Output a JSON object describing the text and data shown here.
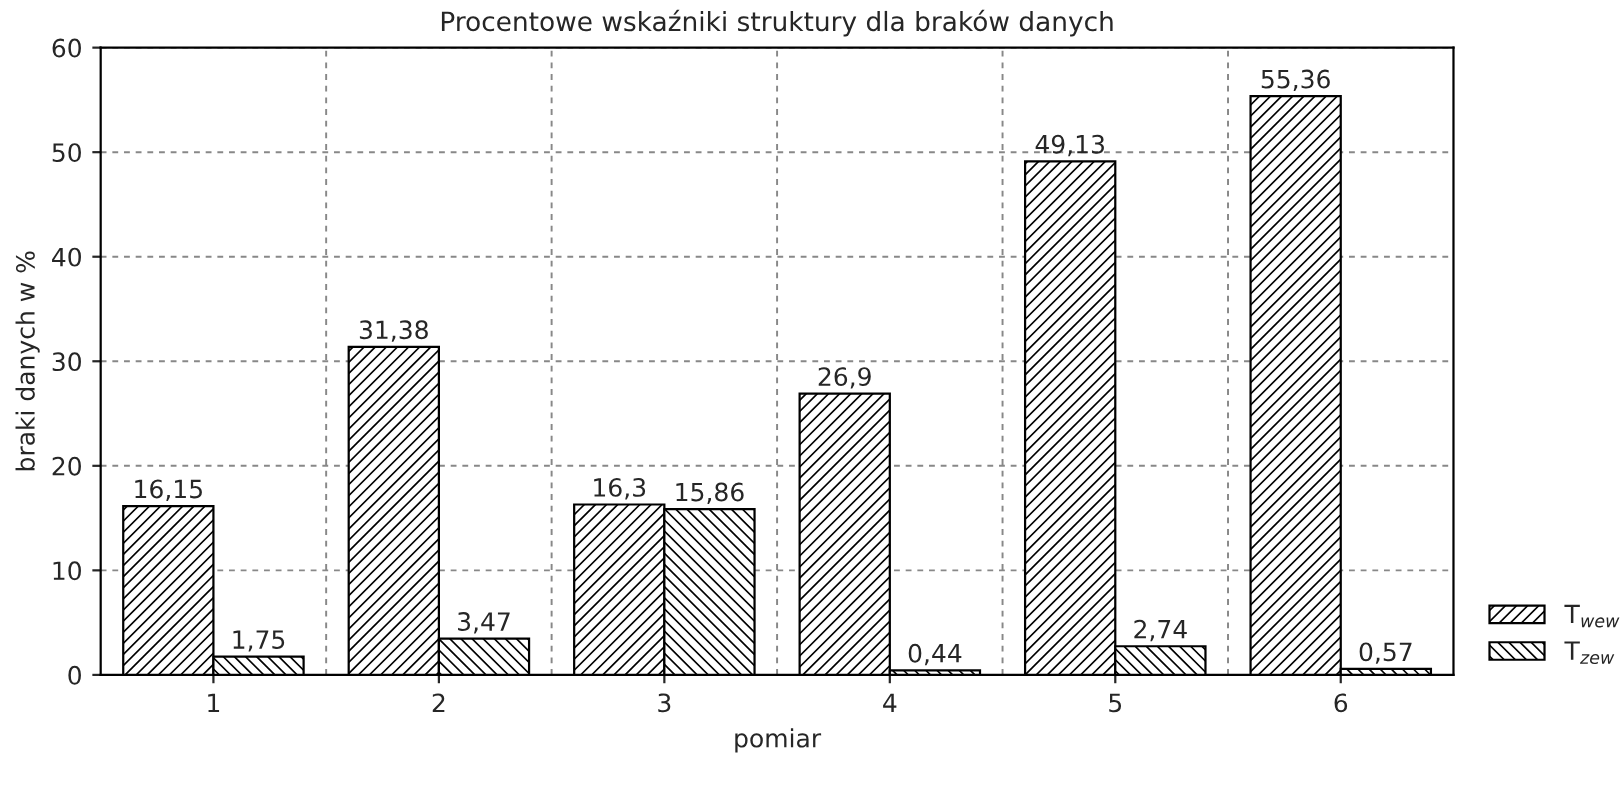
{
  "chart_data": {
    "type": "bar",
    "title": "Procentowe wskaźniki struktury dla braków danych",
    "xlabel": "pomiar",
    "ylabel": "braki danych w %",
    "categories": [
      "1",
      "2",
      "3",
      "4",
      "5",
      "6"
    ],
    "series": [
      {
        "name": "T$_{wew}$",
        "color": "#000000",
        "values": [
          16.15,
          31.38,
          16.3,
          26.9,
          49.13,
          55.36
        ],
        "value_labels": [
          "16,15",
          "31,38",
          "16,3",
          "26,9",
          "49,13",
          "55,36"
        ]
      },
      {
        "name": "T$_{zew}$",
        "color": "#000000",
        "values": [
          1.75,
          3.47,
          15.86,
          0.44,
          2.74,
          0.57
        ],
        "value_labels": [
          "1,75",
          "3,47",
          "15,86",
          "0,44",
          "2,74",
          "0,57"
        ]
      }
    ],
    "ylim": [
      0,
      60
    ],
    "yticks": [
      0,
      10,
      20,
      30,
      40,
      50,
      60
    ],
    "grid": true,
    "legend": "bottom right"
  }
}
